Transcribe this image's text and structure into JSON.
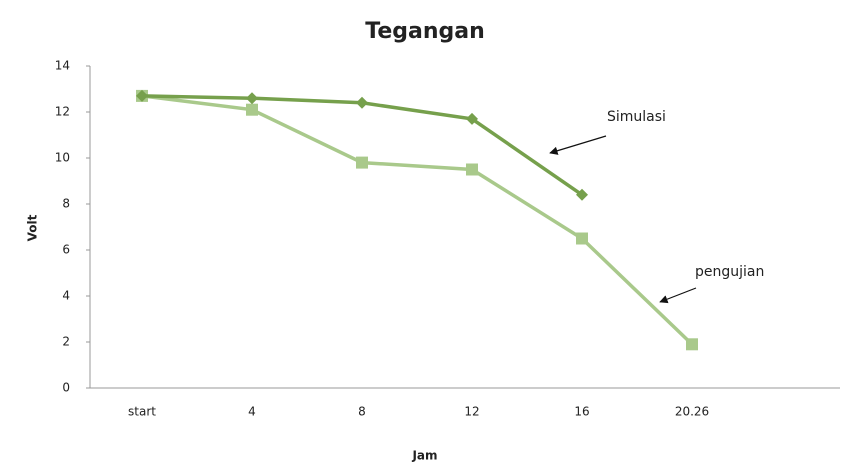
{
  "chart_data": {
    "type": "line",
    "title": "Tegangan",
    "x_label": "Jam",
    "y_label": "Volt",
    "categories": [
      "start",
      "4",
      "8",
      "12",
      "16",
      "20.26"
    ],
    "series": [
      {
        "name": "Simulasi",
        "color": "#76a04c",
        "marker": "diamond",
        "values": [
          12.7,
          12.6,
          12.4,
          11.7,
          8.4,
          null
        ]
      },
      {
        "name": "pengujian",
        "color": "#a9c98b",
        "marker": "square",
        "values": [
          12.7,
          12.1,
          9.8,
          9.5,
          6.5,
          1.9
        ]
      }
    ],
    "ylim": [
      0,
      14
    ],
    "yticks": [
      0,
      2,
      4,
      6,
      8,
      10,
      12,
      14
    ],
    "grid": false
  }
}
